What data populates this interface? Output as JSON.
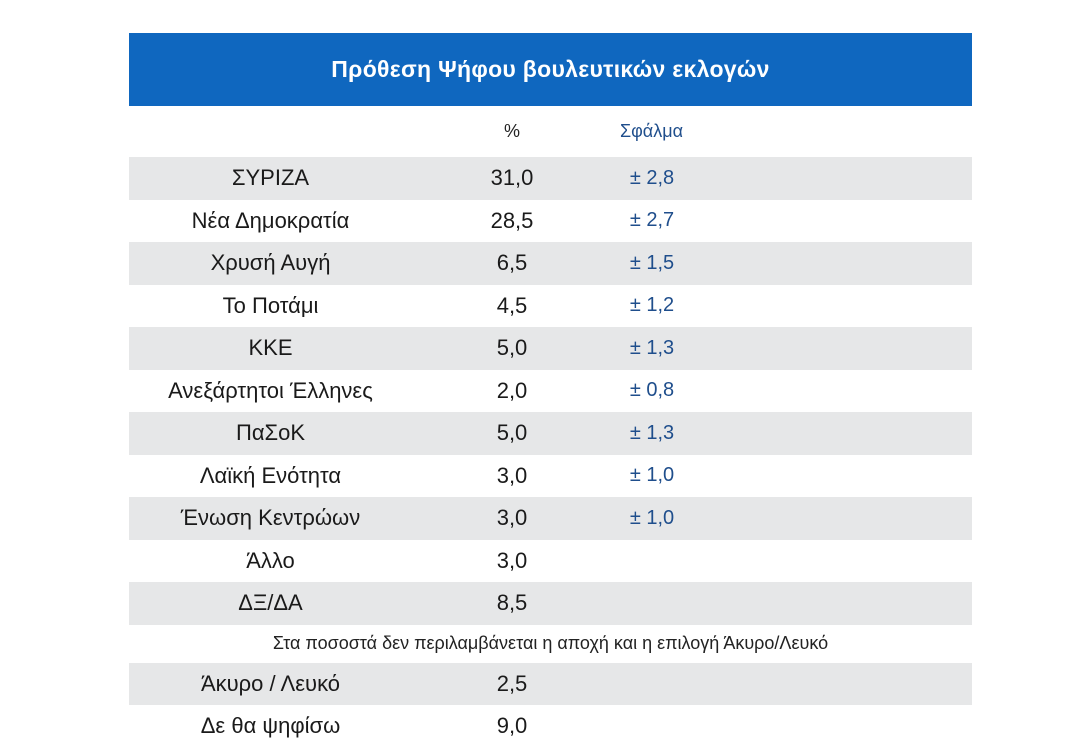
{
  "title": "Πρόθεση Ψήφου βουλευτικών εκλογών",
  "columns": {
    "percent": "%",
    "error": "Σφάλμα"
  },
  "rows": [
    {
      "name": "ΣΥΡΙΖΑ",
      "percent": "31,0",
      "error": "± 2,8"
    },
    {
      "name": "Νέα Δημοκρατία",
      "percent": "28,5",
      "error": "± 2,7"
    },
    {
      "name": "Χρυσή Αυγή",
      "percent": "6,5",
      "error": "± 1,5"
    },
    {
      "name": "Το Ποτάμι",
      "percent": "4,5",
      "error": "± 1,2"
    },
    {
      "name": "ΚΚΕ",
      "percent": "5,0",
      "error": "± 1,3"
    },
    {
      "name": "Ανεξάρτητοι Έλληνες",
      "percent": "2,0",
      "error": "± 0,8"
    },
    {
      "name": "ΠαΣοΚ",
      "percent": "5,0",
      "error": "± 1,3"
    },
    {
      "name": "Λαϊκή Ενότητα",
      "percent": "3,0",
      "error": "± 1,0"
    },
    {
      "name": "Ένωση Κεντρώων",
      "percent": "3,0",
      "error": "± 1,0"
    },
    {
      "name": "Άλλο",
      "percent": "3,0",
      "error": ""
    },
    {
      "name": "ΔΞ/ΔΑ",
      "percent": "8,5",
      "error": ""
    }
  ],
  "note": "Στα ποσοστά δεν περιλαμβάνεται η αποχή και η επιλογή Άκυρο/Λευκό",
  "extra_rows": [
    {
      "name": "Άκυρο / Λευκό",
      "percent": "2,5"
    },
    {
      "name": "Δε θα ψηφίσω",
      "percent": "9,0"
    }
  ]
}
